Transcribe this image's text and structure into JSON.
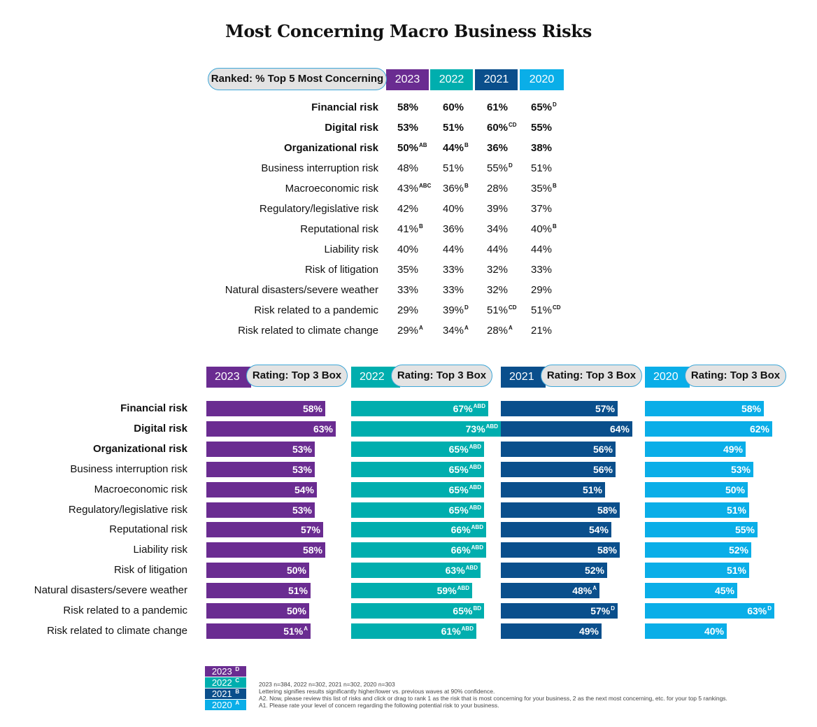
{
  "title": "Most Concerning Macro Business Risks",
  "colors": {
    "y2023": "#6a2c91",
    "y2022": "#00aeae",
    "y2021": "#0a4f8c",
    "y2020": "#0aaee8"
  },
  "ranked": {
    "header": "Ranked: % Top 5 Most Concerning",
    "years": [
      "2023",
      "2022",
      "2021",
      "2020"
    ],
    "rows": [
      {
        "label": "Financial risk",
        "bold": true,
        "values": [
          {
            "v": "58%",
            "s": ""
          },
          {
            "v": "60%",
            "s": ""
          },
          {
            "v": "61%",
            "s": ""
          },
          {
            "v": "65%",
            "s": "D"
          }
        ]
      },
      {
        "label": "Digital risk",
        "bold": true,
        "values": [
          {
            "v": "53%",
            "s": ""
          },
          {
            "v": "51%",
            "s": ""
          },
          {
            "v": "60%",
            "s": "CD"
          },
          {
            "v": "55%",
            "s": ""
          }
        ]
      },
      {
        "label": "Organizational risk",
        "bold": true,
        "values": [
          {
            "v": "50%",
            "s": "AB"
          },
          {
            "v": "44%",
            "s": "B"
          },
          {
            "v": "36%",
            "s": ""
          },
          {
            "v": "38%",
            "s": ""
          }
        ]
      },
      {
        "label": "Business interruption risk",
        "bold": false,
        "values": [
          {
            "v": "48%",
            "s": ""
          },
          {
            "v": "51%",
            "s": ""
          },
          {
            "v": "55%",
            "s": "D"
          },
          {
            "v": "51%",
            "s": ""
          }
        ]
      },
      {
        "label": "Macroeconomic risk",
        "bold": false,
        "values": [
          {
            "v": "43%",
            "s": "ABC"
          },
          {
            "v": "36%",
            "s": "B"
          },
          {
            "v": "28%",
            "s": ""
          },
          {
            "v": "35%",
            "s": "B"
          }
        ]
      },
      {
        "label": "Regulatory/legislative risk",
        "bold": false,
        "values": [
          {
            "v": "42%",
            "s": ""
          },
          {
            "v": "40%",
            "s": ""
          },
          {
            "v": "39%",
            "s": ""
          },
          {
            "v": "37%",
            "s": ""
          }
        ]
      },
      {
        "label": "Reputational risk",
        "bold": false,
        "values": [
          {
            "v": "41%",
            "s": "B"
          },
          {
            "v": "36%",
            "s": ""
          },
          {
            "v": "34%",
            "s": ""
          },
          {
            "v": "40%",
            "s": "B"
          }
        ]
      },
      {
        "label": "Liability risk",
        "bold": false,
        "values": [
          {
            "v": "40%",
            "s": ""
          },
          {
            "v": "44%",
            "s": ""
          },
          {
            "v": "44%",
            "s": ""
          },
          {
            "v": "44%",
            "s": ""
          }
        ]
      },
      {
        "label": "Risk of litigation",
        "bold": false,
        "values": [
          {
            "v": "35%",
            "s": ""
          },
          {
            "v": "33%",
            "s": ""
          },
          {
            "v": "32%",
            "s": ""
          },
          {
            "v": "33%",
            "s": ""
          }
        ]
      },
      {
        "label": "Natural disasters/severe weather",
        "bold": false,
        "values": [
          {
            "v": "33%",
            "s": ""
          },
          {
            "v": "33%",
            "s": ""
          },
          {
            "v": "32%",
            "s": ""
          },
          {
            "v": "29%",
            "s": ""
          }
        ]
      },
      {
        "label": "Risk related to a pandemic",
        "bold": false,
        "values": [
          {
            "v": "29%",
            "s": ""
          },
          {
            "v": "39%",
            "s": "D"
          },
          {
            "v": "51%",
            "s": "CD"
          },
          {
            "v": "51%",
            "s": "CD"
          }
        ]
      },
      {
        "label": "Risk related to climate change",
        "bold": false,
        "values": [
          {
            "v": "29%",
            "s": "A"
          },
          {
            "v": "34%",
            "s": "A"
          },
          {
            "v": "28%",
            "s": "A"
          },
          {
            "v": "21%",
            "s": ""
          }
        ]
      }
    ]
  },
  "chart_data": {
    "type": "bar",
    "title": "Rating: Top 3 Box",
    "categories": [
      "Financial risk",
      "Digital risk",
      "Organizational risk",
      "Business interruption risk",
      "Macroeconomic risk",
      "Regulatory/legislative risk",
      "Reputational risk",
      "Liability risk",
      "Risk of litigation",
      "Natural disasters/severe weather",
      "Risk related to a pandemic",
      "Risk related to climate change"
    ],
    "bold_categories": [
      "Financial risk",
      "Digital risk",
      "Organizational risk"
    ],
    "ylim": [
      0,
      100
    ],
    "series": [
      {
        "name": "2023",
        "values": [
          58,
          63,
          53,
          53,
          54,
          53,
          57,
          58,
          50,
          51,
          50,
          51
        ],
        "sig": [
          "",
          "",
          "",
          "",
          "",
          "",
          "",
          "",
          "",
          "",
          "",
          "A"
        ]
      },
      {
        "name": "2022",
        "values": [
          67,
          73,
          65,
          65,
          65,
          65,
          66,
          66,
          63,
          59,
          65,
          61
        ],
        "sig": [
          "ABD",
          "ABD",
          "ABD",
          "ABD",
          "ABD",
          "ABD",
          "ABD",
          "ABD",
          "ABD",
          "ABD",
          "BD",
          "ABD"
        ]
      },
      {
        "name": "2021",
        "values": [
          57,
          64,
          56,
          56,
          51,
          58,
          54,
          58,
          52,
          48,
          57,
          49
        ],
        "sig": [
          "",
          "",
          "",
          "",
          "",
          "",
          "",
          "",
          "",
          "A",
          "D",
          ""
        ]
      },
      {
        "name": "2020",
        "values": [
          58,
          62,
          49,
          53,
          50,
          51,
          55,
          52,
          51,
          45,
          63,
          40
        ],
        "sig": [
          "",
          "",
          "",
          "",
          "",
          "",
          "",
          "",
          "",
          "",
          "D",
          ""
        ]
      }
    ]
  },
  "legend": [
    {
      "year": "2023",
      "letter": "D"
    },
    {
      "year": "2022",
      "letter": "C"
    },
    {
      "year": "2021",
      "letter": "B"
    },
    {
      "year": "2020",
      "letter": "A"
    }
  ],
  "notes": [
    "2023 n=384, 2022 n=302, 2021 n=302, 2020 n=303",
    "Lettering signifies results significantly higher/lower vs. previous waves at 90% confidence.",
    "A2. Now, please review this list of risks and click or drag to rank 1 as the risk that is most concerning for your business, 2 as the next most concerning, etc. for your top 5 rankings.",
    "A1. Please rate your level of concern regarding the following potential risk to your business."
  ]
}
